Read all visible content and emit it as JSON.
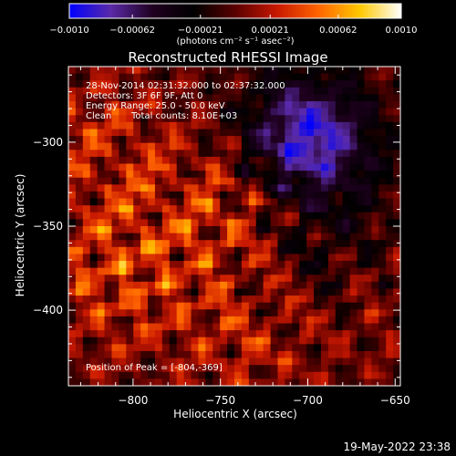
{
  "chart_data": {
    "type": "heatmap",
    "title": "Reconstructed RHESSI Image",
    "xlabel": "Heliocentric X (arcsec)",
    "ylabel": "Heliocentric Y (arcsec)",
    "xlim": [
      -837,
      -647
    ],
    "ylim": [
      -445,
      -255
    ],
    "xticks": [
      -800,
      -750,
      -700,
      -650
    ],
    "xtick_labels": [
      "−800",
      "−750",
      "−700",
      "−650"
    ],
    "yticks": [
      -300,
      -350,
      -400
    ],
    "ytick_labels": [
      "−300",
      "−350",
      "−400"
    ],
    "colorbar": {
      "min": -0.001,
      "max": 0.001,
      "ticks": [
        -0.001,
        -0.00062,
        -0.00021,
        0.00021,
        0.00062,
        0.001
      ],
      "tick_labels": [
        "−0.0010",
        "−0.00062",
        "−0.00021",
        "0.00021",
        "0.00062",
        "0.0010"
      ],
      "units": "(photons cm⁻² s⁻¹ asec⁻²)",
      "colors": [
        "#0000ff",
        "#5a2aa8",
        "#200020",
        "#000000",
        "#5a0000",
        "#c81800",
        "#ff6400",
        "#ffc800",
        "#ffffff"
      ]
    },
    "annotations": {
      "time_range": "28-Nov-2014 02:31:32.000 to 02:37:32.000",
      "detectors": "Detectors: 3F 6F 9F, Att 0",
      "energy": "Energy Range: 25.0 - 50.0 keV",
      "method": "Clean",
      "counts": "Total counts: 8.10E+03",
      "peak": "Position of Peak = [-804,-369]"
    },
    "peak_position": [
      -804,
      -369
    ],
    "grid": false
  },
  "footer": {
    "date": "19-May-2022 23:38"
  }
}
